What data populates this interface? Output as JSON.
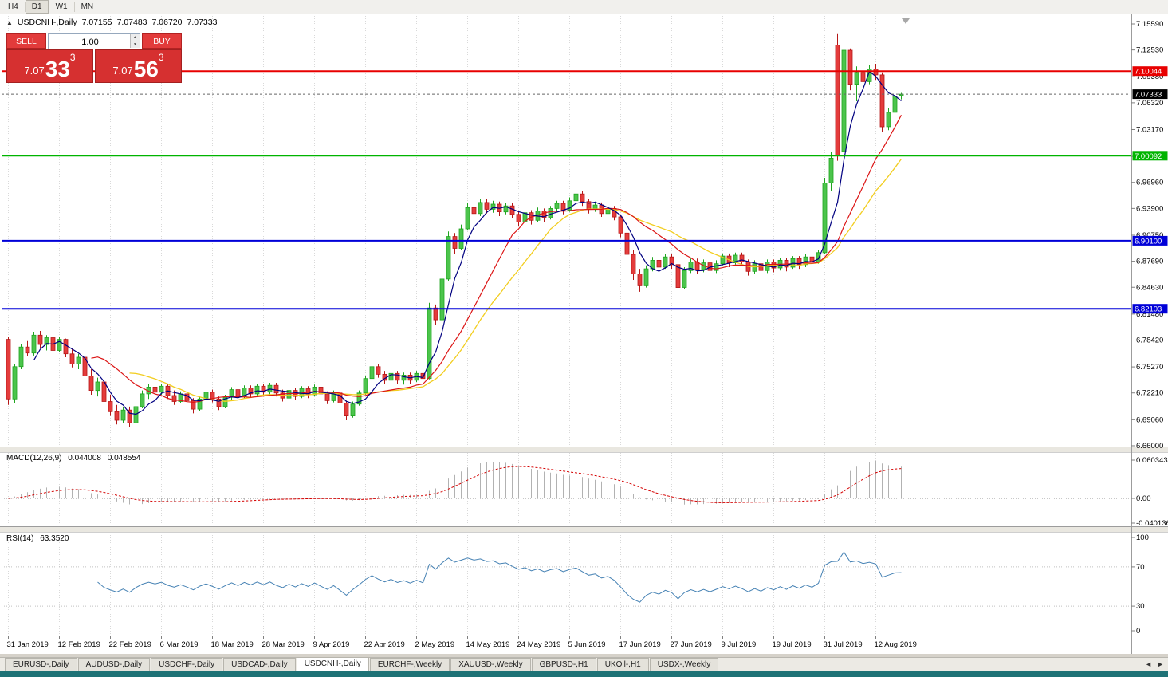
{
  "toolbar": {
    "timeframes": [
      "H4",
      "D1",
      "W1",
      "MN"
    ],
    "active": "D1"
  },
  "chart": {
    "header": {
      "collapse_icon": "▲",
      "symbol": "USDCNH-,Daily",
      "open": "7.07155",
      "high": "7.07483",
      "low": "7.06720",
      "close": "7.07333"
    },
    "one_click": {
      "sell_label": "SELL",
      "buy_label": "BUY",
      "volume": "1.00",
      "spin_up": "▲",
      "spin_down": "▼",
      "bid": {
        "prefix": "7.07",
        "big": "33",
        "sup": "3"
      },
      "ask": {
        "prefix": "7.07",
        "big": "56",
        "sup": "3"
      }
    },
    "levels": [
      {
        "value": 7.10044,
        "label": "7.10044",
        "color": "#e80000"
      },
      {
        "value": 7.00092,
        "label": "7.00092",
        "color": "#00b400"
      },
      {
        "value": 6.901,
        "label": "6.90100",
        "color": "#0000d8"
      },
      {
        "value": 6.82103,
        "label": "6.82103",
        "color": "#0000d8"
      }
    ],
    "last_price": {
      "value": 7.07333,
      "label": "7.07333",
      "color": "#000000"
    },
    "price_axis": [
      "7.15590",
      "7.12530",
      "7.09380",
      "7.06320",
      "7.03170",
      "7.00020",
      "6.96960",
      "6.93900",
      "6.90750",
      "6.87690",
      "6.84630",
      "6.81480",
      "6.78420",
      "6.75270",
      "6.72210",
      "6.69060",
      "6.66000"
    ]
  },
  "macd": {
    "label": "MACD(12,26,9)",
    "values": [
      "0.044008",
      "0.048554"
    ],
    "axis": [
      "0.060343",
      "0.00",
      "-0.040136"
    ],
    "params": [
      12,
      26,
      9
    ]
  },
  "rsi": {
    "label": "RSI(14)",
    "value": "63.3520",
    "axis": [
      "100",
      "70",
      "30",
      "0"
    ],
    "levels": [
      70,
      30
    ],
    "period": 14
  },
  "tabs": {
    "items": [
      {
        "label": "EURUSD-,Daily",
        "active": false
      },
      {
        "label": "AUDUSD-,Daily",
        "active": false
      },
      {
        "label": "USDCHF-,Daily",
        "active": false
      },
      {
        "label": "USDCAD-,Daily",
        "active": false
      },
      {
        "label": "USDCNH-,Daily",
        "active": true
      },
      {
        "label": "EURCHF-,Weekly",
        "active": false
      },
      {
        "label": "XAUUSD-,Weekly",
        "active": false
      },
      {
        "label": "GBPUSD-,H1",
        "active": false
      },
      {
        "label": "UKOil-,H1",
        "active": false
      },
      {
        "label": "USDX-,Weekly",
        "active": false
      }
    ],
    "scroll_left": "◄",
    "scroll_right": "►"
  },
  "chart_data": {
    "type": "candlestick",
    "title": "USDCNH-,Daily",
    "symbol": "USDCNH",
    "timeframe": "Daily",
    "y_axis_range": [
      6.66,
      7.1559
    ],
    "x_tick_labels": [
      "31 Jan 2019",
      "12 Feb 2019",
      "22 Feb 2019",
      "6 Mar 2019",
      "18 Mar 2019",
      "28 Mar 2019",
      "9 Apr 2019",
      "22 Apr 2019",
      "2 May 2019",
      "14 May 2019",
      "24 May 2019",
      "5 Jun 2019",
      "17 Jun 2019",
      "27 Jun 2019",
      "9 Jul 2019",
      "19 Jul 2019",
      "31 Jul 2019",
      "12 Aug 2019"
    ],
    "candles_per_tick": 8,
    "moving_averages": [
      {
        "period": 5,
        "color": "#000080"
      },
      {
        "period": 14,
        "color": "#dc1414"
      },
      {
        "period": 20,
        "color": "#f2cd1e"
      }
    ],
    "ohlc": [
      [
        6.785,
        6.788,
        6.708,
        6.715
      ],
      [
        6.715,
        6.756,
        6.71,
        6.753
      ],
      [
        6.753,
        6.78,
        6.75,
        6.776
      ],
      [
        6.776,
        6.783,
        6.765,
        6.769
      ],
      [
        6.769,
        6.794,
        6.766,
        6.79
      ],
      [
        6.79,
        6.795,
        6.775,
        6.779
      ],
      [
        6.779,
        6.79,
        6.772,
        6.787
      ],
      [
        6.787,
        6.789,
        6.768,
        6.772
      ],
      [
        6.772,
        6.788,
        6.77,
        6.785
      ],
      [
        6.785,
        6.786,
        6.764,
        6.768
      ],
      [
        6.768,
        6.774,
        6.752,
        6.756
      ],
      [
        6.756,
        6.768,
        6.75,
        6.764
      ],
      [
        6.764,
        6.766,
        6.738,
        6.742
      ],
      [
        6.742,
        6.75,
        6.72,
        6.725
      ],
      [
        6.725,
        6.74,
        6.718,
        6.735
      ],
      [
        6.735,
        6.738,
        6.708,
        6.712
      ],
      [
        6.712,
        6.72,
        6.695,
        6.7
      ],
      [
        6.7,
        6.708,
        6.685,
        6.69
      ],
      [
        6.69,
        6.705,
        6.687,
        6.702
      ],
      [
        6.702,
        6.706,
        6.682,
        6.687
      ],
      [
        6.687,
        6.71,
        6.685,
        6.706
      ],
      [
        6.706,
        6.725,
        6.704,
        6.721
      ],
      [
        6.721,
        6.733,
        6.715,
        6.729
      ],
      [
        6.729,
        6.734,
        6.718,
        6.723
      ],
      [
        6.723,
        6.733,
        6.72,
        6.73
      ],
      [
        6.73,
        6.733,
        6.715,
        6.719
      ],
      [
        6.719,
        6.725,
        6.708,
        6.712
      ],
      [
        6.712,
        6.724,
        6.71,
        6.721
      ],
      [
        6.721,
        6.724,
        6.709,
        6.713
      ],
      [
        6.713,
        6.716,
        6.698,
        6.703
      ],
      [
        6.703,
        6.718,
        6.701,
        6.715
      ],
      [
        6.715,
        6.726,
        6.712,
        6.723
      ],
      [
        6.723,
        6.726,
        6.711,
        6.715
      ],
      [
        6.715,
        6.718,
        6.702,
        6.706
      ],
      [
        6.706,
        6.72,
        6.704,
        6.717
      ],
      [
        6.717,
        6.729,
        6.714,
        6.726
      ],
      [
        6.726,
        6.729,
        6.714,
        6.718
      ],
      [
        6.718,
        6.731,
        6.716,
        6.728
      ],
      [
        6.728,
        6.731,
        6.717,
        6.721
      ],
      [
        6.721,
        6.733,
        6.719,
        6.73
      ],
      [
        6.73,
        6.733,
        6.719,
        6.723
      ],
      [
        6.723,
        6.734,
        6.72,
        6.731
      ],
      [
        6.731,
        6.734,
        6.718,
        6.722
      ],
      [
        6.722,
        6.726,
        6.712,
        6.716
      ],
      [
        6.716,
        6.728,
        6.714,
        6.725
      ],
      [
        6.725,
        6.728,
        6.714,
        6.718
      ],
      [
        6.718,
        6.73,
        6.716,
        6.727
      ],
      [
        6.727,
        6.73,
        6.716,
        6.72
      ],
      [
        6.72,
        6.732,
        6.718,
        6.729
      ],
      [
        6.729,
        6.732,
        6.717,
        6.721
      ],
      [
        6.721,
        6.724,
        6.709,
        6.713
      ],
      [
        6.713,
        6.725,
        6.711,
        6.722
      ],
      [
        6.722,
        6.725,
        6.706,
        6.71
      ],
      [
        6.71,
        6.713,
        6.69,
        6.695
      ],
      [
        6.695,
        6.712,
        6.693,
        6.709
      ],
      [
        6.709,
        6.725,
        6.707,
        6.722
      ],
      [
        6.722,
        6.742,
        6.72,
        6.739
      ],
      [
        6.739,
        6.756,
        6.737,
        6.753
      ],
      [
        6.753,
        6.756,
        6.74,
        6.744
      ],
      [
        6.744,
        6.748,
        6.733,
        6.737
      ],
      [
        6.737,
        6.748,
        6.735,
        6.745
      ],
      [
        6.745,
        6.748,
        6.733,
        6.737
      ],
      [
        6.737,
        6.746,
        6.732,
        6.743
      ],
      [
        6.743,
        6.746,
        6.733,
        6.737
      ],
      [
        6.737,
        6.748,
        6.735,
        6.745
      ],
      [
        6.745,
        6.748,
        6.734,
        6.739
      ],
      [
        6.739,
        6.828,
        6.738,
        6.822
      ],
      [
        6.822,
        6.826,
        6.802,
        6.808
      ],
      [
        6.808,
        6.862,
        6.806,
        6.856
      ],
      [
        6.856,
        6.912,
        6.854,
        6.906
      ],
      [
        6.906,
        6.91,
        6.885,
        6.892
      ],
      [
        6.892,
        6.92,
        6.89,
        6.915
      ],
      [
        6.915,
        6.945,
        6.913,
        6.94
      ],
      [
        6.94,
        6.948,
        6.928,
        6.933
      ],
      [
        6.933,
        6.95,
        6.93,
        6.946
      ],
      [
        6.946,
        6.95,
        6.933,
        6.938
      ],
      [
        6.938,
        6.948,
        6.934,
        6.944
      ],
      [
        6.944,
        6.947,
        6.93,
        6.935
      ],
      [
        6.935,
        6.945,
        6.932,
        6.942
      ],
      [
        6.942,
        6.945,
        6.928,
        6.932
      ],
      [
        6.932,
        6.936,
        6.918,
        6.923
      ],
      [
        6.923,
        6.938,
        6.92,
        6.934
      ],
      [
        6.934,
        6.937,
        6.92,
        6.925
      ],
      [
        6.925,
        6.94,
        6.923,
        6.936
      ],
      [
        6.936,
        6.939,
        6.923,
        6.928
      ],
      [
        6.928,
        6.942,
        6.926,
        6.939
      ],
      [
        6.939,
        6.948,
        6.936,
        6.945
      ],
      [
        6.945,
        6.948,
        6.932,
        6.937
      ],
      [
        6.937,
        6.952,
        6.935,
        6.948
      ],
      [
        6.948,
        6.964,
        6.946,
        6.956
      ],
      [
        6.956,
        6.96,
        6.942,
        6.947
      ],
      [
        6.947,
        6.95,
        6.933,
        6.938
      ],
      [
        6.938,
        6.947,
        6.935,
        6.943
      ],
      [
        6.943,
        6.946,
        6.929,
        6.933
      ],
      [
        6.933,
        6.942,
        6.93,
        6.939
      ],
      [
        6.939,
        6.942,
        6.925,
        6.929
      ],
      [
        6.929,
        6.932,
        6.905,
        6.91
      ],
      [
        6.91,
        6.915,
        6.88,
        6.885
      ],
      [
        6.885,
        6.89,
        6.855,
        6.862
      ],
      [
        6.862,
        6.868,
        6.841,
        6.848
      ],
      [
        6.848,
        6.872,
        6.846,
        6.868
      ],
      [
        6.868,
        6.882,
        6.865,
        6.878
      ],
      [
        6.878,
        6.882,
        6.865,
        6.87
      ],
      [
        6.87,
        6.885,
        6.868,
        6.882
      ],
      [
        6.882,
        6.885,
        6.868,
        6.873
      ],
      [
        6.873,
        6.876,
        6.827,
        6.846
      ],
      [
        6.846,
        6.87,
        6.844,
        6.866
      ],
      [
        6.866,
        6.88,
        6.863,
        6.876
      ],
      [
        6.876,
        6.88,
        6.862,
        6.867
      ],
      [
        6.867,
        6.879,
        6.864,
        6.875
      ],
      [
        6.875,
        6.878,
        6.861,
        6.866
      ],
      [
        6.866,
        6.878,
        6.863,
        6.874
      ],
      [
        6.874,
        6.886,
        6.872,
        6.883
      ],
      [
        6.883,
        6.886,
        6.87,
        6.875
      ],
      [
        6.875,
        6.887,
        6.873,
        6.884
      ],
      [
        6.884,
        6.887,
        6.871,
        6.876
      ],
      [
        6.876,
        6.879,
        6.86,
        6.865
      ],
      [
        6.865,
        6.878,
        6.862,
        6.874
      ],
      [
        6.874,
        6.877,
        6.861,
        6.866
      ],
      [
        6.866,
        6.879,
        6.863,
        6.876
      ],
      [
        6.876,
        6.879,
        6.864,
        6.869
      ],
      [
        6.869,
        6.881,
        6.866,
        6.878
      ],
      [
        6.878,
        6.881,
        6.865,
        6.87
      ],
      [
        6.87,
        6.883,
        6.868,
        6.88
      ],
      [
        6.88,
        6.883,
        6.868,
        6.873
      ],
      [
        6.873,
        6.885,
        6.87,
        6.882
      ],
      [
        6.882,
        6.885,
        6.87,
        6.876
      ],
      [
        6.876,
        6.89,
        6.874,
        6.887
      ],
      [
        6.887,
        6.975,
        6.885,
        6.969
      ],
      [
        6.969,
        7.005,
        6.96,
        6.998
      ],
      [
        7.131,
        7.144,
        6.995,
        7.001
      ],
      [
        7.006,
        7.128,
        7.002,
        7.125
      ],
      [
        7.125,
        7.127,
        7.078,
        7.085
      ],
      [
        7.085,
        7.106,
        7.065,
        7.099
      ],
      [
        7.099,
        7.101,
        7.083,
        7.088
      ],
      [
        7.088,
        7.108,
        7.085,
        7.103
      ],
      [
        7.103,
        7.109,
        7.09,
        7.096
      ],
      [
        7.096,
        7.099,
        7.029,
        7.035
      ],
      [
        7.035,
        7.057,
        7.031,
        7.052
      ],
      [
        7.052,
        7.073,
        7.049,
        7.071
      ],
      [
        7.0716,
        7.0748,
        7.0672,
        7.0733
      ]
    ]
  }
}
